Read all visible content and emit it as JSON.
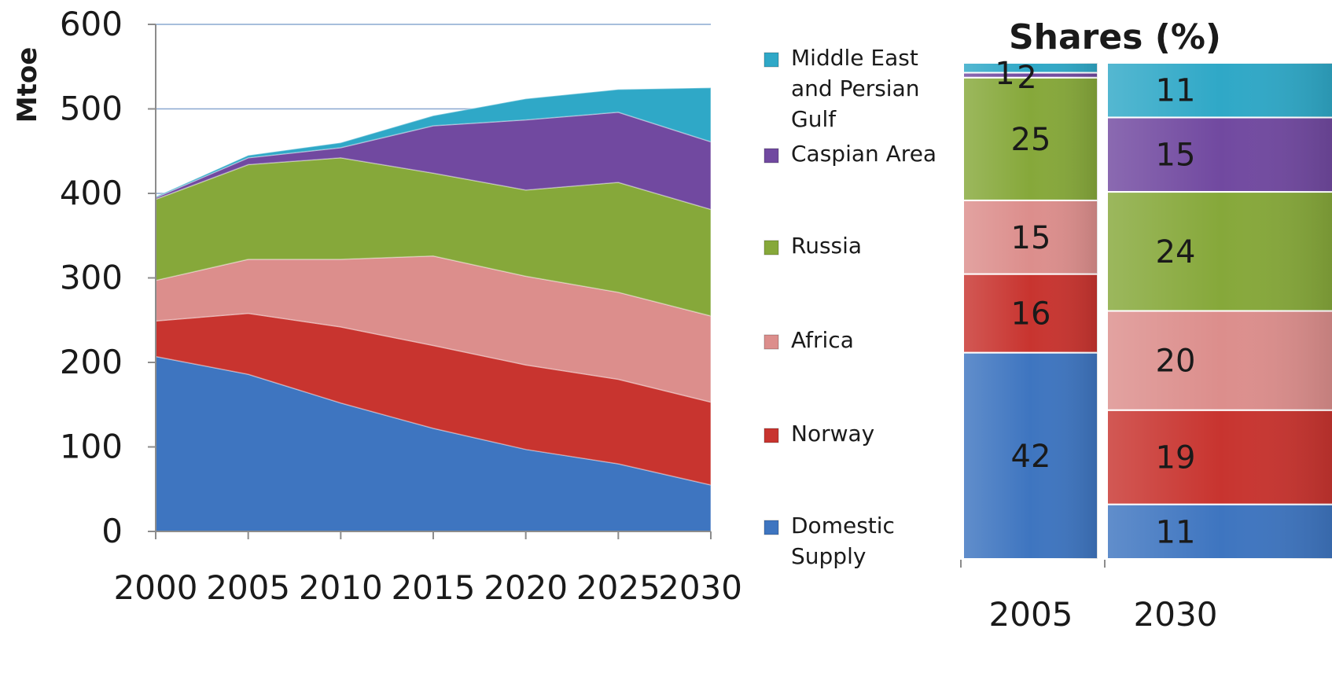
{
  "chart_data": [
    {
      "type": "area",
      "stacked": true,
      "ylabel": "Mtoe",
      "xlabel": "",
      "x": [
        2000,
        2005,
        2010,
        2015,
        2020,
        2025,
        2030
      ],
      "x_ticks": [
        "2000",
        "2005",
        "2010",
        "2015",
        "2020",
        "2025",
        "2030"
      ],
      "ylim": [
        0,
        600
      ],
      "y_ticks": [
        "0",
        "100",
        "200",
        "300",
        "400",
        "500",
        "600"
      ],
      "grid": "horizontal",
      "series": [
        {
          "name": "Domestic Supply",
          "color": "#3e75c0",
          "values": [
            207,
            186,
            152,
            122,
            97,
            80,
            55
          ]
        },
        {
          "name": "Norway",
          "color": "#c8342f",
          "values": [
            42,
            72,
            90,
            98,
            100,
            100,
            98
          ]
        },
        {
          "name": "Africa",
          "color": "#dc8e8c",
          "values": [
            48,
            64,
            80,
            106,
            105,
            103,
            102
          ]
        },
        {
          "name": "Russia",
          "color": "#86a83a",
          "values": [
            96,
            112,
            120,
            98,
            102,
            130,
            126
          ]
        },
        {
          "name": "Caspian Area",
          "color": "#7149a0",
          "values": [
            2,
            8,
            12,
            56,
            83,
            83,
            80
          ]
        },
        {
          "name": "Middle East and Persian Gulf",
          "color": "#2fa8c7",
          "values": [
            1,
            3,
            6,
            12,
            25,
            27,
            64
          ]
        }
      ]
    },
    {
      "type": "bar",
      "stacked": true,
      "title": "Shares (%)",
      "categories": [
        "2005",
        "2030"
      ],
      "series": [
        {
          "name": "Domestic Supply",
          "color": "#3e75c0",
          "values": [
            42,
            11
          ]
        },
        {
          "name": "Norway",
          "color": "#c8342f",
          "values": [
            16,
            19
          ]
        },
        {
          "name": "Africa",
          "color": "#dc8e8c",
          "values": [
            15,
            20
          ]
        },
        {
          "name": "Russia",
          "color": "#86a83a",
          "values": [
            25,
            24
          ]
        },
        {
          "name": "Caspian Area",
          "color": "#7149a0",
          "values": [
            1,
            15
          ]
        },
        {
          "name": "Middle East and Persian Gulf",
          "color": "#2fa8c7",
          "values": [
            2,
            11
          ]
        }
      ],
      "labels": [
        [
          "42",
          "16",
          "15",
          "25",
          "1",
          "2"
        ],
        [
          "11",
          "19",
          "20",
          "24",
          "15",
          "11"
        ]
      ]
    }
  ],
  "legend": {
    "placement": "right",
    "items": [
      {
        "lines": [
          "Middle East",
          "and Persian",
          "Gulf"
        ],
        "color": "#2fa8c7"
      },
      {
        "lines": [
          "Caspian Area"
        ],
        "color": "#7149a0"
      },
      {
        "lines": [
          "Russia"
        ],
        "color": "#86a83a"
      },
      {
        "lines": [
          "Africa"
        ],
        "color": "#dc8e8c"
      },
      {
        "lines": [
          "Norway"
        ],
        "color": "#c8342f"
      },
      {
        "lines": [
          "Domestic",
          "Supply"
        ],
        "color": "#3e75c0"
      }
    ]
  }
}
